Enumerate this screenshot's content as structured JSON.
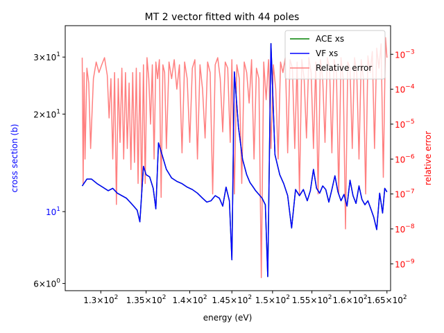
{
  "colors": {
    "ace": "#008000",
    "vf": "#0000ff",
    "error": "#ff7f7f",
    "left_axis_label": "#0000ff",
    "right_axis_label": "#ff0000",
    "axes": "#000000"
  },
  "chart_data": {
    "type": "line",
    "title": "MT 2 vector fitted with 44 poles",
    "xlabel": "energy (eV)",
    "ylabel_left": "cross section (b)",
    "ylabel_right": "relative error",
    "x_scale": "log",
    "y_left_scale": "log",
    "y_right_scale": "log",
    "xlim": [
      126.2,
      165.5
    ],
    "ylim_left": [
      5.7,
      37.5
    ],
    "ylim_right": [
      1.7e-10,
      0.0066
    ],
    "legend": {
      "placement": "top-right",
      "entries": [
        "ACE xs",
        "VF xs",
        "Relative error"
      ]
    },
    "x_ticks": [
      {
        "value": 130,
        "mantissa": "1.3",
        "exp": "2"
      },
      {
        "value": 135,
        "mantissa": "1.35",
        "exp": "2"
      },
      {
        "value": 140,
        "mantissa": "1.4",
        "exp": "2"
      },
      {
        "value": 145,
        "mantissa": "1.45",
        "exp": "2"
      },
      {
        "value": 150,
        "mantissa": "1.5",
        "exp": "2"
      },
      {
        "value": 155,
        "mantissa": "1.55",
        "exp": "2"
      },
      {
        "value": 160,
        "mantissa": "1.6",
        "exp": "2"
      },
      {
        "value": 165,
        "mantissa": "1.65",
        "exp": "2"
      }
    ],
    "y_left_ticks": [
      {
        "value": 6,
        "mantissa": "6",
        "exp": "0"
      },
      {
        "value": 10,
        "mantissa": "",
        "exp": "1"
      },
      {
        "value": 20,
        "mantissa": "2",
        "exp": "1"
      },
      {
        "value": 30,
        "mantissa": "3",
        "exp": "1"
      }
    ],
    "y_right_ticks": [
      {
        "value": 1e-09,
        "mantissa": "",
        "exp": "−9"
      },
      {
        "value": 1e-08,
        "mantissa": "",
        "exp": "−8"
      },
      {
        "value": 1e-07,
        "mantissa": "",
        "exp": "−7"
      },
      {
        "value": 1e-06,
        "mantissa": "",
        "exp": "−6"
      },
      {
        "value": 1e-05,
        "mantissa": "",
        "exp": "−5"
      },
      {
        "value": 0.0001,
        "mantissa": "",
        "exp": "−4"
      },
      {
        "value": 0.001,
        "mantissa": "",
        "exp": "−3"
      }
    ],
    "series": [
      {
        "name": "ACE xs",
        "axis": "left",
        "x": [
          128.0,
          128.5,
          129.0,
          129.6,
          130.2,
          130.8,
          131.3,
          131.8,
          132.3,
          132.8,
          133.2,
          133.6,
          134.0,
          134.3,
          134.7,
          135.0,
          135.4,
          135.8,
          136.1,
          136.4,
          136.8,
          137.3,
          137.9,
          138.5,
          139.1,
          139.7,
          140.3,
          140.9,
          141.5,
          142.0,
          142.5,
          143.0,
          143.5,
          143.9,
          144.3,
          144.7,
          145.0,
          145.3,
          145.8,
          146.3,
          146.8,
          147.2,
          147.6,
          147.9,
          148.3,
          148.7,
          149.1,
          149.4,
          149.8,
          150.3,
          150.9,
          151.4,
          151.9,
          152.4,
          152.9,
          153.4,
          153.9,
          154.4,
          154.8,
          155.2,
          155.6,
          156.0,
          156.4,
          156.8,
          157.2,
          157.6,
          158.0,
          158.4,
          158.8,
          159.2,
          159.6,
          160.0,
          160.4,
          160.8,
          161.2,
          161.6,
          162.0,
          162.4,
          162.8,
          163.2,
          163.6,
          164.0,
          164.4,
          164.7,
          165.0
        ],
        "y": [
          12.0,
          12.6,
          12.6,
          12.2,
          11.9,
          11.6,
          11.8,
          11.4,
          11.2,
          11.0,
          10.7,
          10.4,
          10.1,
          9.3,
          13.8,
          13.0,
          12.8,
          11.8,
          10.2,
          16.3,
          15.0,
          13.5,
          12.7,
          12.4,
          12.2,
          11.9,
          11.7,
          11.4,
          11.0,
          10.7,
          10.8,
          11.2,
          11.0,
          10.4,
          11.9,
          10.8,
          7.1,
          27.0,
          18.2,
          14.5,
          13.0,
          12.3,
          11.9,
          11.6,
          11.3,
          11.0,
          10.5,
          6.3,
          33.0,
          15.0,
          13.0,
          12.2,
          11.2,
          8.9,
          11.7,
          11.2,
          11.7,
          10.8,
          11.6,
          13.5,
          11.8,
          11.4,
          12.0,
          11.7,
          10.7,
          11.7,
          12.9,
          11.5,
          10.8,
          11.3,
          10.4,
          12.5,
          11.2,
          10.6,
          12.0,
          10.9,
          10.5,
          10.8,
          10.2,
          9.6,
          8.8,
          11.4,
          9.9,
          11.8,
          11.5
        ]
      },
      {
        "name": "VF xs",
        "axis": "left",
        "x": [
          128.0,
          128.5,
          129.0,
          129.6,
          130.2,
          130.8,
          131.3,
          131.8,
          132.3,
          132.8,
          133.2,
          133.6,
          134.0,
          134.3,
          134.7,
          135.0,
          135.4,
          135.8,
          136.1,
          136.4,
          136.8,
          137.3,
          137.9,
          138.5,
          139.1,
          139.7,
          140.3,
          140.9,
          141.5,
          142.0,
          142.5,
          143.0,
          143.5,
          143.9,
          144.3,
          144.7,
          145.0,
          145.3,
          145.8,
          146.3,
          146.8,
          147.2,
          147.6,
          147.9,
          148.3,
          148.7,
          149.1,
          149.4,
          149.8,
          150.3,
          150.9,
          151.4,
          151.9,
          152.4,
          152.9,
          153.4,
          153.9,
          154.4,
          154.8,
          155.2,
          155.6,
          156.0,
          156.4,
          156.8,
          157.2,
          157.6,
          158.0,
          158.4,
          158.8,
          159.2,
          159.6,
          160.0,
          160.4,
          160.8,
          161.2,
          161.6,
          162.0,
          162.4,
          162.8,
          163.2,
          163.6,
          164.0,
          164.4,
          164.7,
          165.0
        ],
        "y": [
          12.0,
          12.6,
          12.6,
          12.2,
          11.9,
          11.6,
          11.8,
          11.4,
          11.2,
          11.0,
          10.7,
          10.4,
          10.1,
          9.3,
          13.8,
          13.0,
          12.8,
          11.8,
          10.2,
          16.3,
          15.0,
          13.5,
          12.7,
          12.4,
          12.2,
          11.9,
          11.7,
          11.4,
          11.0,
          10.7,
          10.8,
          11.2,
          11.0,
          10.4,
          11.9,
          10.8,
          7.1,
          27.0,
          18.2,
          14.5,
          13.0,
          12.3,
          11.9,
          11.6,
          11.3,
          11.0,
          10.5,
          6.3,
          33.0,
          15.0,
          13.0,
          12.2,
          11.2,
          8.9,
          11.7,
          11.2,
          11.7,
          10.8,
          11.6,
          13.5,
          11.8,
          11.4,
          12.0,
          11.7,
          10.7,
          11.7,
          12.9,
          11.5,
          10.8,
          11.3,
          10.4,
          12.5,
          11.2,
          10.6,
          12.0,
          10.9,
          10.5,
          10.8,
          10.2,
          9.6,
          8.8,
          11.4,
          9.9,
          11.8,
          11.5
        ]
      },
      {
        "name": "Relative error",
        "axis": "right",
        "x": [
          128.0,
          128.1,
          128.2,
          128.3,
          128.5,
          128.7,
          128.9,
          129.2,
          129.5,
          129.8,
          130.1,
          130.4,
          130.7,
          130.9,
          131.1,
          131.3,
          131.5,
          131.7,
          131.9,
          132.1,
          132.3,
          132.5,
          132.7,
          132.9,
          133.1,
          133.3,
          133.5,
          133.7,
          133.9,
          134.1,
          134.3,
          134.5,
          134.7,
          134.9,
          135.1,
          135.3,
          135.5,
          135.7,
          135.9,
          136.1,
          136.3,
          136.5,
          136.7,
          136.9,
          137.1,
          137.3,
          137.6,
          137.9,
          138.2,
          138.5,
          138.8,
          139.1,
          139.4,
          139.7,
          140.0,
          140.3,
          140.6,
          140.9,
          141.2,
          141.5,
          141.8,
          142.1,
          142.4,
          142.7,
          143.0,
          143.3,
          143.6,
          143.9,
          144.2,
          144.5,
          144.8,
          145.0,
          145.3,
          145.6,
          145.9,
          146.2,
          146.5,
          146.8,
          147.1,
          147.4,
          147.7,
          148.0,
          148.3,
          148.6,
          148.9,
          149.2,
          149.5,
          149.8,
          150.1,
          150.4,
          150.7,
          151.0,
          151.3,
          151.6,
          151.9,
          152.2,
          152.5,
          152.8,
          153.1,
          153.4,
          153.7,
          154.0,
          154.3,
          154.6,
          154.9,
          155.2,
          155.5,
          155.8,
          156.1,
          156.4,
          156.7,
          157.0,
          157.3,
          157.6,
          157.9,
          158.2,
          158.5,
          158.8,
          159.1,
          159.4,
          159.7,
          160.0,
          160.3,
          160.6,
          160.9,
          161.2,
          161.5,
          161.8,
          162.1,
          162.4,
          162.7,
          163.0,
          163.3,
          163.6,
          163.9,
          164.2,
          164.5,
          164.8,
          165.0
        ],
        "y": [
          0.0008,
          2e-07,
          0.0003,
          1e-06,
          0.0004,
          0.00015,
          2e-06,
          0.0002,
          0.0006,
          0.0003,
          0.0005,
          0.0008,
          0.00025,
          1.5e-05,
          0.0002,
          1e-06,
          0.0003,
          5e-08,
          0.0002,
          3e-06,
          0.0004,
          1e-06,
          0.0003,
          2e-06,
          0.00015,
          5e-07,
          0.0003,
          8e-07,
          0.0004,
          2e-07,
          0.0003,
          1e-07,
          0.0005,
          2e-07,
          0.0008,
          0.0002,
          1e-05,
          0.0005,
          1e-06,
          0.0006,
          0.0002,
          0.0007,
          8e-08,
          0.0005,
          0.0003,
          2e-06,
          0.0006,
          0.0002,
          0.0007,
          0.0001,
          0.0005,
          1.5e-06,
          0.0006,
          0.0002,
          3e-06,
          0.0004,
          0.0007,
          1e-06,
          0.0005,
          0.0001,
          4e-06,
          0.0006,
          0.0003,
          1e-07,
          0.0005,
          0.0008,
          0.0002,
          6e-06,
          0.0006,
          0.0004,
          3e-06,
          0.0007,
          1e-07,
          0.0005,
          0.0002,
          2e-07,
          0.0006,
          0.0003,
          4e-05,
          0.0007,
          1e-06,
          0.0004,
          0.0002,
          4e-10,
          0.0006,
          5e-05,
          0.0007,
          2e-06,
          0.0005,
          0.0001,
          1e-06,
          0.0006,
          0.0003,
          0.0008,
          1.5e-06,
          0.0007,
          0.0004,
          2e-06,
          0.0006,
          1e-07,
          0.0007,
          0.0002,
          4e-06,
          0.0008,
          0.0003,
          2e-06,
          0.0006,
          1e-07,
          0.0007,
          0.0002,
          3e-06,
          0.0008,
          0.0004,
          1.5e-06,
          0.0007,
          0.0003,
          1e-07,
          0.0008,
          0.0002,
          1e-08,
          0.0006,
          0.0004,
          2e-06,
          0.0008,
          0.0003,
          1e-06,
          0.0007,
          0.0002,
          1e-07,
          0.0009,
          0.0003,
          0.0012,
          2e-06,
          0.0015,
          0.0004,
          0.002,
          3e-07,
          0.003,
          0.0008
        ]
      }
    ]
  }
}
